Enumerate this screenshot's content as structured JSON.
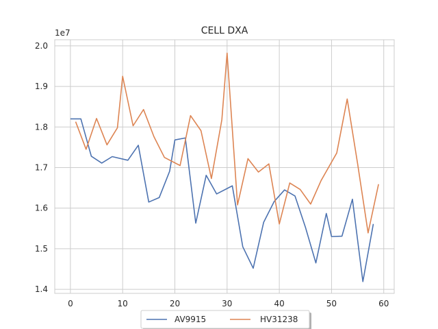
{
  "chart_data": {
    "type": "line",
    "title": "CELL DXA",
    "xlabel": "",
    "ylabel": "",
    "y_offset_label": "1e7",
    "xlim": [
      -3,
      62
    ],
    "ylim": [
      13900000,
      20150000
    ],
    "xticks": [
      0,
      10,
      20,
      30,
      40,
      50,
      60
    ],
    "xtick_labels": [
      "0",
      "10",
      "20",
      "30",
      "40",
      "50",
      "60"
    ],
    "yticks": [
      14000000,
      15000000,
      16000000,
      17000000,
      18000000,
      19000000,
      20000000
    ],
    "ytick_labels": [
      "1.4",
      "1.5",
      "1.6",
      "1.7",
      "1.8",
      "1.9",
      "2.0"
    ],
    "grid": true,
    "legend_position": "bottom-center",
    "series": [
      {
        "name": "AV9915",
        "color": "#4c72b0",
        "x": [
          0,
          2,
          4,
          6,
          8,
          11,
          13,
          15,
          17,
          19,
          20,
          22,
          24,
          26,
          28,
          31,
          33,
          35,
          37,
          39,
          41,
          43,
          45,
          47,
          49,
          50,
          52,
          54,
          56,
          58
        ],
        "y": [
          18200000,
          18200000,
          17280000,
          17110000,
          17270000,
          17180000,
          17550000,
          16150000,
          16260000,
          16910000,
          17680000,
          17730000,
          15630000,
          16810000,
          16350000,
          16550000,
          15050000,
          14520000,
          15650000,
          16160000,
          16450000,
          16300000,
          15530000,
          14650000,
          15870000,
          15300000,
          15310000,
          16220000,
          14190000,
          15610000
        ]
      },
      {
        "name": "HV31238",
        "color": "#dd8452",
        "x": [
          1,
          3,
          5,
          7,
          9,
          10,
          12,
          14,
          16,
          18,
          21,
          23,
          25,
          27,
          29,
          30,
          32,
          34,
          36,
          38,
          40,
          42,
          44,
          46,
          48,
          51,
          53,
          55,
          57,
          59
        ],
        "y": [
          18130000,
          17450000,
          18210000,
          17560000,
          17980000,
          19250000,
          18030000,
          18430000,
          17760000,
          17250000,
          17050000,
          18280000,
          17910000,
          16730000,
          18180000,
          19820000,
          16080000,
          17220000,
          16890000,
          17090000,
          15610000,
          16620000,
          16460000,
          16100000,
          16680000,
          17360000,
          18690000,
          17090000,
          15390000,
          16590000
        ]
      }
    ]
  }
}
